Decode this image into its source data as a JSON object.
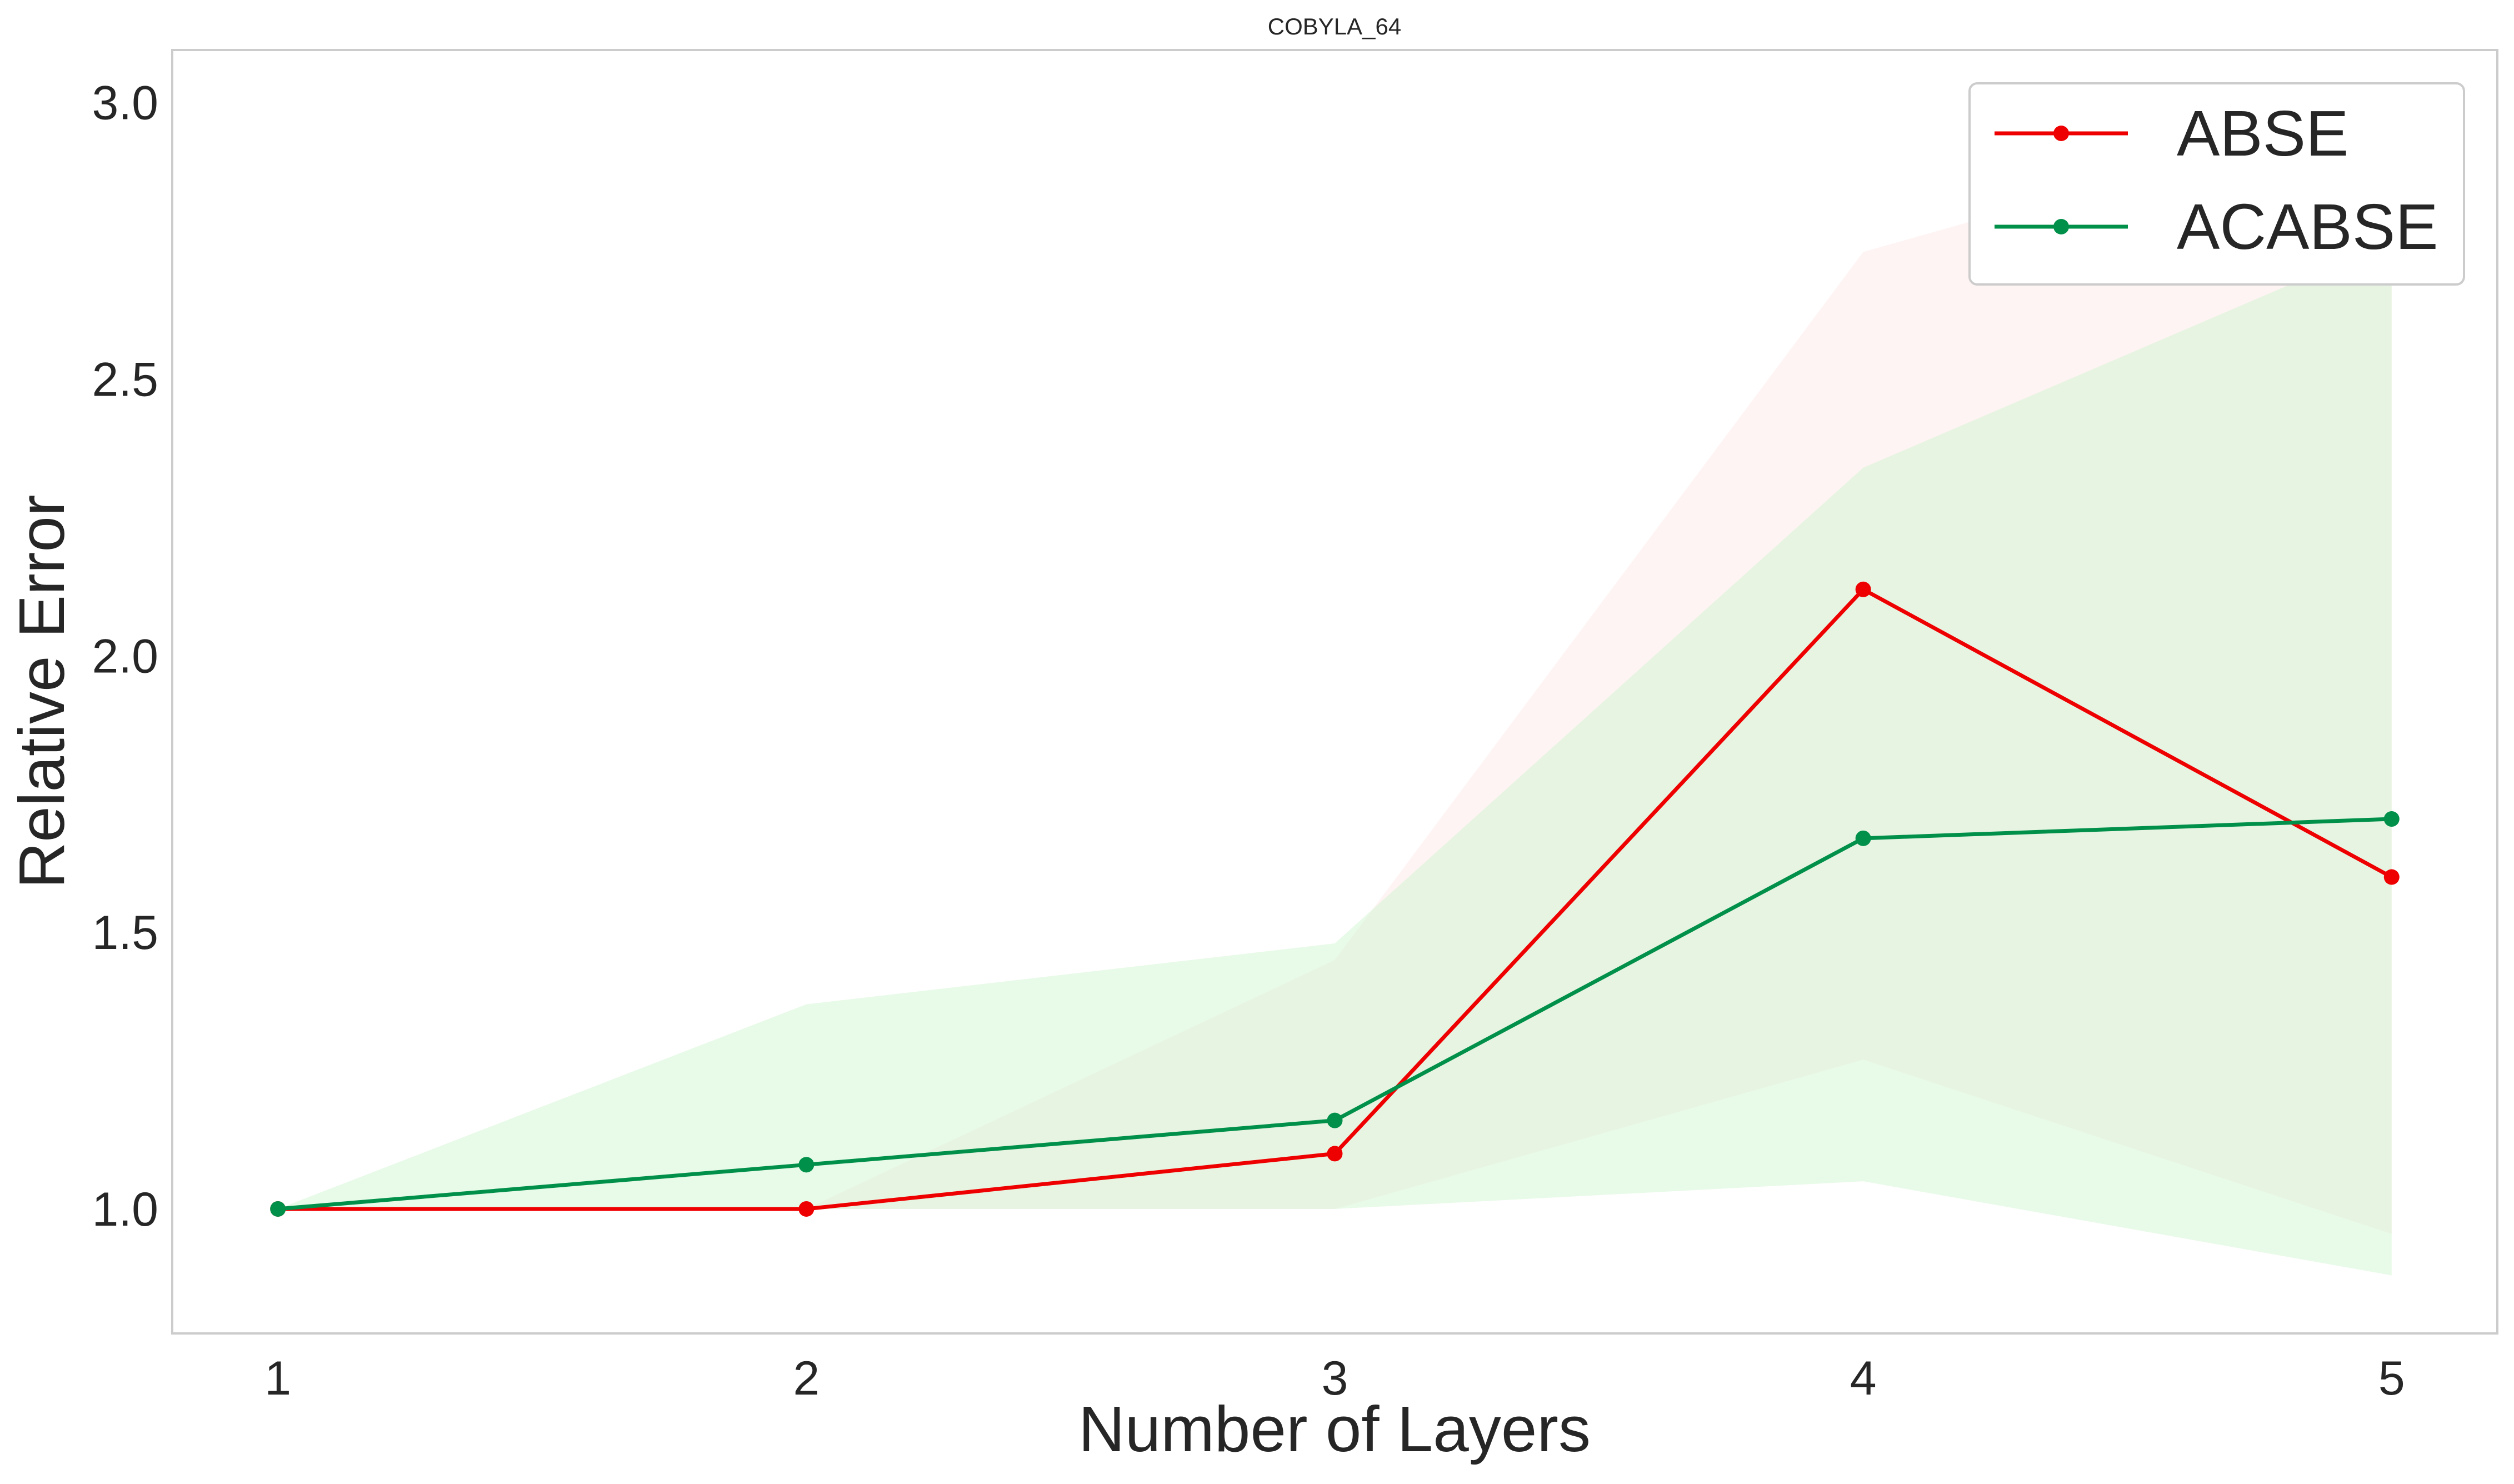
{
  "chart_data": {
    "type": "line",
    "title": "COBYLA_64",
    "xlabel": "Number of Layers",
    "ylabel": "Relative Error",
    "x": [
      1,
      2,
      3,
      4,
      5
    ],
    "xticks": [
      "1",
      "2",
      "3",
      "4",
      "5"
    ],
    "yticks": [
      "1.0",
      "1.5",
      "2.0",
      "2.5",
      "3.0"
    ],
    "xlim": [
      0.8,
      5.2
    ],
    "ylim": [
      0.775,
      3.095
    ],
    "grid": false,
    "legend_position": "top-right",
    "series": [
      {
        "name": "ABSE",
        "color": "#ee0000",
        "band_color": "#ffe6e6",
        "values": [
          1.0,
          1.0,
          1.1,
          2.12,
          1.6
        ],
        "lower": [
          1.0,
          1.0,
          1.0,
          1.27,
          0.955
        ],
        "upper": [
          1.0,
          1.0,
          1.45,
          2.73,
          3.0
        ]
      },
      {
        "name": "ACABSE",
        "color": "#00904a",
        "band_color": "#ccf5cc",
        "values": [
          1.0,
          1.08,
          1.16,
          1.67,
          1.705
        ],
        "lower": [
          1.0,
          1.0,
          1.0,
          1.05,
          0.88
        ],
        "upper": [
          1.0,
          1.37,
          1.48,
          2.34,
          2.75
        ]
      }
    ]
  }
}
